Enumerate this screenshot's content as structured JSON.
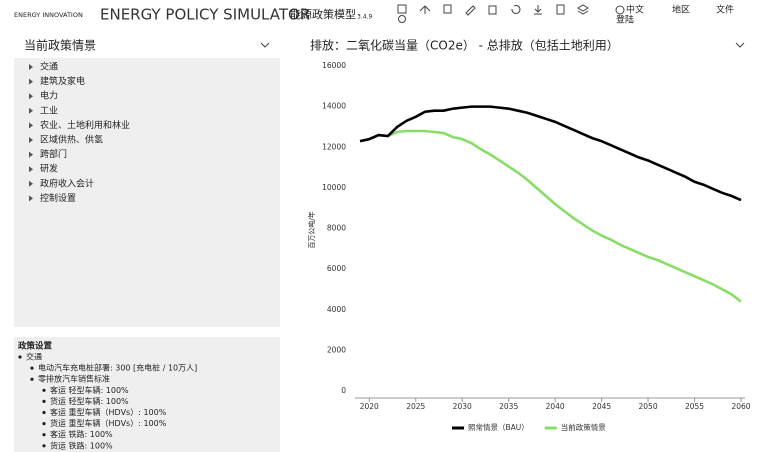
{
  "header": {
    "logo": "ENERGY INNOVATION",
    "title": "ENERGY POLICY SIMULATOR",
    "subtitle": "能源政策模型",
    "version": "3.4.9",
    "language": "中文",
    "login": "登陆",
    "region": "地区",
    "file": "文件"
  },
  "sidebar": {
    "title": "当前政策情景",
    "items": [
      "交通",
      "建筑及家电",
      "电力",
      "工业",
      "农业、土地利用和林业",
      "区域供热、供氢",
      "跨部门",
      "研发",
      "政府收入会计",
      "控制设置"
    ]
  },
  "policy_settings": {
    "title": "政策设置",
    "items": [
      {
        "text": "交通",
        "level": 1
      },
      {
        "text": "电动汽车充电桩部署: 300 [充电桩 / 10万人]",
        "level": 2
      },
      {
        "text": "零排放汽车销售标准",
        "level": 2
      },
      {
        "text": "客运 轻型车辆: 100%",
        "level": 3
      },
      {
        "text": "货运 轻型车辆: 100%",
        "level": 3
      },
      {
        "text": "客运 重型车辆（HDVs）: 100%",
        "level": 3
      },
      {
        "text": "货运 重型车辆（HDVs）: 100%",
        "level": 3
      },
      {
        "text": "客运 铁路: 100%",
        "level": 3
      },
      {
        "text": "货运 铁路: 100%",
        "level": 3
      }
    ]
  },
  "chart_data": {
    "type": "line",
    "title": "排放：二氧化碳当量（CO2e） - 总排放（包括土地利用）",
    "y_label": "百万公吨/年",
    "x": [
      2019,
      2020,
      2021,
      2022,
      2023,
      2024,
      2025,
      2026,
      2027,
      2028,
      2029,
      2030,
      2031,
      2032,
      2033,
      2034,
      2035,
      2036,
      2037,
      2038,
      2039,
      2040,
      2041,
      2042,
      2043,
      2044,
      2045,
      2046,
      2047,
      2048,
      2049,
      2050,
      2051,
      2052,
      2053,
      2054,
      2055,
      2056,
      2057,
      2058,
      2059,
      2060
    ],
    "series": [
      {
        "name": "照常情景（BAU）",
        "color": "#000000",
        "values": [
          12300,
          12400,
          12600,
          12550,
          13000,
          13300,
          13500,
          13750,
          13800,
          13800,
          13900,
          13950,
          14000,
          14000,
          14000,
          13950,
          13900,
          13800,
          13700,
          13550,
          13400,
          13250,
          13050,
          12850,
          12650,
          12450,
          12300,
          12100,
          11900,
          11700,
          11500,
          11350,
          11150,
          10950,
          10750,
          10550,
          10300,
          10150,
          9950,
          9750,
          9600,
          9400
        ]
      },
      {
        "name": "当前政策情景",
        "color": "#88dd66",
        "values": [
          12300,
          12400,
          12600,
          12550,
          12750,
          12800,
          12800,
          12800,
          12750,
          12700,
          12500,
          12400,
          12200,
          11900,
          11650,
          11350,
          11050,
          10750,
          10400,
          10000,
          9600,
          9200,
          8850,
          8500,
          8200,
          7900,
          7650,
          7450,
          7200,
          7000,
          6800,
          6600,
          6450,
          6250,
          6050,
          5850,
          5650,
          5450,
          5250,
          5000,
          4750,
          4400
        ]
      }
    ],
    "xlim": [
      2019,
      2060
    ],
    "xticks": [
      2020,
      2025,
      2030,
      2035,
      2040,
      2045,
      2050,
      2055,
      2060
    ],
    "ylim": [
      0,
      16000
    ],
    "yticks": [
      0,
      2000,
      4000,
      6000,
      8000,
      10000,
      12000,
      14000,
      16000
    ],
    "grid": false
  }
}
